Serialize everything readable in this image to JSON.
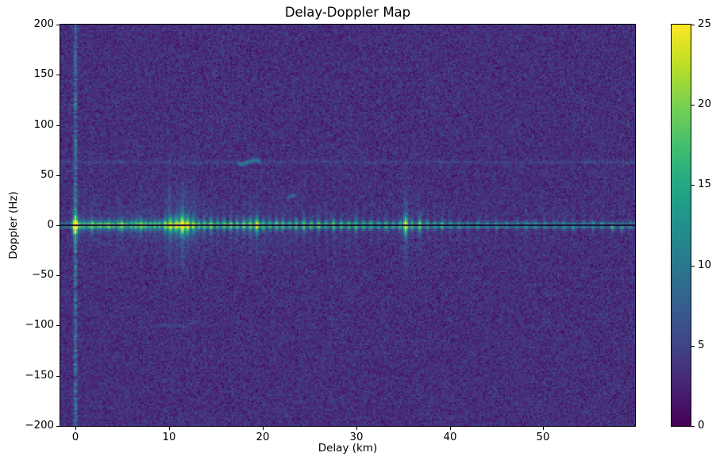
{
  "figure": {
    "background": "#ffffff"
  },
  "chart_data": {
    "type": "heatmap",
    "title": "Delay-Doppler Map",
    "xlabel": "Delay (km)",
    "ylabel": "Doppler (Hz)",
    "xlim": [
      -1.6,
      59.8
    ],
    "ylim": [
      -200,
      200
    ],
    "grid": false,
    "x_ticks": [
      {
        "value": 0,
        "label": "0"
      },
      {
        "value": 10,
        "label": "10"
      },
      {
        "value": 20,
        "label": "20"
      },
      {
        "value": 30,
        "label": "30"
      },
      {
        "value": 40,
        "label": "40"
      },
      {
        "value": 50,
        "label": "50"
      }
    ],
    "y_ticks": [
      {
        "value": 200,
        "label": "200"
      },
      {
        "value": 150,
        "label": "150"
      },
      {
        "value": 100,
        "label": "100"
      },
      {
        "value": 50,
        "label": "50"
      },
      {
        "value": 0,
        "label": "0"
      },
      {
        "value": -50,
        "label": "−50"
      },
      {
        "value": -100,
        "label": "−100"
      },
      {
        "value": -150,
        "label": "−150"
      },
      {
        "value": -200,
        "label": "−200"
      }
    ],
    "colormap": {
      "name": "viridis",
      "anchors": [
        "#440154",
        "#482475",
        "#414487",
        "#355f8d",
        "#2a788e",
        "#21918c",
        "#22a884",
        "#44bf70",
        "#7ad151",
        "#bddf26",
        "#fde725"
      ]
    },
    "colorbar": {
      "position": "right",
      "vmin": 0,
      "vmax": 25,
      "ticks": [
        {
          "value": 0,
          "label": "0"
        },
        {
          "value": 5,
          "label": "5"
        },
        {
          "value": 10,
          "label": "10"
        },
        {
          "value": 15,
          "label": "15"
        },
        {
          "value": 20,
          "label": "20"
        },
        {
          "value": 25,
          "label": "25"
        }
      ]
    },
    "noise": {
      "mean": 3.35,
      "std": 1.05,
      "seed": 42
    },
    "zero_doppler_notch": {
      "doppler_hz": 0,
      "half_width_hz": 1.1,
      "value": 0.5
    },
    "zero_delay_line": {
      "delay_km": 0,
      "mean_amp": 6.4,
      "amp_jitter": 2.6,
      "sigma_km": 0.11
    },
    "sidelobe_rows": {
      "doppler_offset_hz": 1.9,
      "sigma_hz": 0.9,
      "amp": 5.4,
      "amp_jitter": 1.8,
      "delay_decay": 0.004
    },
    "clutter_spikes": [
      [
        0.0,
        21,
        6
      ],
      [
        0.5,
        7,
        3
      ],
      [
        0.9,
        9,
        4
      ],
      [
        1.4,
        7,
        3.5
      ],
      [
        1.8,
        11,
        4.5
      ],
      [
        2.3,
        8,
        3.5
      ],
      [
        2.7,
        9,
        4
      ],
      [
        3.2,
        8,
        3.5
      ],
      [
        3.6,
        10,
        4
      ],
      [
        4.1,
        8,
        3.5
      ],
      [
        4.6,
        9,
        4
      ],
      [
        5.0,
        11,
        4.5
      ],
      [
        5.5,
        8,
        3.5
      ],
      [
        6.0,
        9,
        4
      ],
      [
        6.5,
        10,
        4
      ],
      [
        7.0,
        12,
        4.5
      ],
      [
        7.5,
        9,
        4
      ],
      [
        8.0,
        9,
        4
      ],
      [
        8.5,
        10,
        4
      ],
      [
        9.0,
        9,
        4
      ],
      [
        9.6,
        13,
        5
      ],
      [
        10.2,
        15,
        5.5
      ],
      [
        10.8,
        16,
        6
      ],
      [
        11.4,
        19,
        6.5
      ],
      [
        12.0,
        17,
        6
      ],
      [
        12.6,
        13,
        5
      ],
      [
        13.2,
        10,
        4
      ],
      [
        13.8,
        11,
        4.5
      ],
      [
        14.5,
        12,
        4.5
      ],
      [
        15.2,
        9,
        4
      ],
      [
        15.9,
        10,
        4
      ],
      [
        16.6,
        11,
        4
      ],
      [
        17.3,
        10,
        4
      ],
      [
        18.0,
        11,
        4.5
      ],
      [
        18.7,
        12,
        5
      ],
      [
        19.4,
        15,
        5.5
      ],
      [
        20.1,
        10,
        4
      ],
      [
        20.8,
        9,
        4
      ],
      [
        21.5,
        11,
        4
      ],
      [
        22.2,
        10,
        4
      ],
      [
        22.9,
        9,
        3.5
      ],
      [
        23.6,
        10,
        4
      ],
      [
        24.4,
        11,
        4.5
      ],
      [
        25.2,
        9,
        3.5
      ],
      [
        26.0,
        10,
        4
      ],
      [
        26.8,
        9,
        3.5
      ],
      [
        27.6,
        10,
        4
      ],
      [
        28.4,
        9,
        3.5
      ],
      [
        29.2,
        9,
        3.5
      ],
      [
        30.0,
        10,
        4
      ],
      [
        30.8,
        8,
        3.5
      ],
      [
        31.6,
        9,
        3.5
      ],
      [
        32.4,
        8,
        3
      ],
      [
        33.2,
        9,
        3.5
      ],
      [
        34.0,
        8,
        3
      ],
      [
        34.7,
        9,
        3.5
      ],
      [
        35.3,
        16,
        6
      ],
      [
        36.0,
        9,
        4
      ],
      [
        36.8,
        12,
        5
      ],
      [
        37.6,
        8,
        3.5
      ],
      [
        38.4,
        8,
        3
      ],
      [
        39.2,
        9,
        3.5
      ],
      [
        40.1,
        7,
        3
      ],
      [
        41.0,
        7,
        3
      ],
      [
        42.0,
        6,
        3
      ],
      [
        43.0,
        7,
        3
      ],
      [
        44.0,
        6,
        2.5
      ],
      [
        45.0,
        7,
        3
      ],
      [
        46.1,
        6,
        2.5
      ],
      [
        47.2,
        6,
        2.5
      ],
      [
        48.2,
        7,
        2.5
      ],
      [
        49.2,
        6,
        2.5
      ],
      [
        50.2,
        6,
        2.5
      ],
      [
        51.2,
        6,
        2.5
      ],
      [
        52.2,
        7,
        2.5
      ],
      [
        53.2,
        7,
        2.5,
        -2
      ],
      [
        54.3,
        6,
        2.5
      ],
      [
        55.3,
        6,
        2.5
      ],
      [
        56.3,
        7,
        2.5
      ],
      [
        57.4,
        8,
        2.5,
        -2.5
      ],
      [
        58.4,
        7,
        2.5,
        -2.5
      ],
      [
        59.3,
        6,
        2.5
      ]
    ],
    "doppler_streaks": [
      [
        10.05,
        2.4,
        30,
        8
      ],
      [
        11.5,
        2.8,
        28,
        4
      ],
      [
        12.8,
        1.8,
        20,
        10
      ],
      [
        35.3,
        2.4,
        26,
        -6
      ]
    ],
    "faint_lines": [
      {
        "doppler_hz": 62.8,
        "amp": 1.1,
        "jitter": 0.9,
        "sigma_hz": 1.2
      },
      {
        "doppler_hz": -100,
        "amp": 2.0,
        "sigma_hz": 1.1,
        "delay_center": 10.3,
        "delay_sigma": 2.0
      }
    ],
    "tracks": [
      {
        "amp": 5.5,
        "points": [
          [
            17.5,
            61.2
          ],
          [
            17.8,
            60.8
          ],
          [
            18.1,
            61.2
          ],
          [
            18.4,
            62.2
          ],
          [
            18.7,
            63.6
          ],
          [
            19.0,
            64.8
          ],
          [
            19.3,
            64.9
          ],
          [
            19.6,
            63.8
          ]
        ]
      },
      {
        "amp": 5.0,
        "points": [
          [
            22.8,
            28.0
          ],
          [
            23.1,
            28.8
          ],
          [
            23.4,
            29.8
          ]
        ]
      }
    ]
  }
}
